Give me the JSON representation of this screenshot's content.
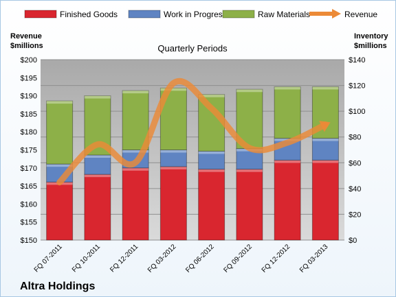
{
  "company": "Altra Holdings",
  "chart_data": {
    "type": "bar",
    "stacked": true,
    "subtitle": "Quarterly Periods",
    "left_axis_title": [
      "Revenue",
      "$millions"
    ],
    "right_axis_title": [
      "Inventory",
      "$millions"
    ],
    "categories": [
      "FQ 07-2011",
      "FQ 10-2011",
      "FQ 12-2011",
      "FQ 03-2012",
      "FQ 06-2012",
      "FQ 09-2012",
      "FQ 12-2012",
      "FQ 03-2013"
    ],
    "left_axis": {
      "min": 150,
      "max": 200,
      "step": 5,
      "prefix": "$",
      "ticks": [
        "$150",
        "$155",
        "$160",
        "$165",
        "$170",
        "$175",
        "$180",
        "$185",
        "$190",
        "$195",
        "$200"
      ]
    },
    "right_axis": {
      "min": 0,
      "max": 140,
      "step": 20,
      "prefix": "$",
      "ticks": [
        "$0",
        "$20",
        "$40",
        "$60",
        "$80",
        "$100",
        "$120",
        "$140"
      ]
    },
    "inventory_series": [
      {
        "name": "Finished Goods",
        "color": "#d9262f",
        "values": [
          45,
          51,
          56,
          57,
          55,
          55,
          62,
          62
        ]
      },
      {
        "name": "Work in Progress",
        "color": "#5f84c2",
        "values": [
          14,
          15,
          14,
          13,
          14,
          16,
          17,
          17
        ]
      },
      {
        "name": "Raw Materials",
        "color": "#8db048",
        "values": [
          49,
          46,
          46,
          48,
          44,
          46,
          40,
          40
        ]
      }
    ],
    "revenue_series": {
      "name": "Revenue",
      "color": "#ec8a37",
      "values": [
        166,
        176.5,
        171.5,
        193.5,
        186.5,
        175.5,
        177,
        182
      ]
    },
    "grid": true,
    "legend_position": "top"
  },
  "colors": {
    "plot_background": "#c8c8c8",
    "grid": "#8f8f8f",
    "frame_border": "#a7c7e3"
  }
}
